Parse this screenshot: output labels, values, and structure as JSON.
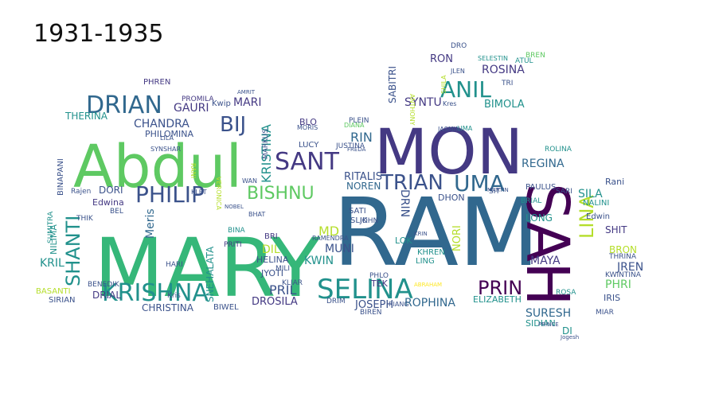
{
  "title": "1931-1935",
  "colors": {
    "background": "#ffffff",
    "palette": [
      "#440154",
      "#3b528b",
      "#21918c",
      "#5ec962",
      "#fde725",
      "#31688e",
      "#35b779",
      "#443983"
    ]
  },
  "words": [
    {
      "text": "RAM",
      "color": "#31688e"
    },
    {
      "text": "MARY",
      "color": "#35b779"
    },
    {
      "text": "Abdul",
      "color": "#5ec962"
    },
    {
      "text": "MON",
      "color": "#443983"
    },
    {
      "text": "SAH",
      "color": "#440154"
    },
    {
      "text": "KRISHNA",
      "color": "#21918c"
    },
    {
      "text": "SELINA",
      "color": "#21918c"
    },
    {
      "text": "DRIAN",
      "color": "#31688e"
    },
    {
      "text": "PHILIP",
      "color": "#3b528b"
    },
    {
      "text": "SANT",
      "color": "#443983"
    },
    {
      "text": "TRIAN",
      "color": "#3b528b"
    },
    {
      "text": "UMA",
      "color": "#31688e"
    },
    {
      "text": "ANIL",
      "color": "#21918c"
    },
    {
      "text": "BISHNU",
      "color": "#5ec962"
    },
    {
      "text": "PRIN",
      "color": "#440154"
    },
    {
      "text": "LINA",
      "color": "#b5de2b"
    },
    {
      "text": "SHANTI",
      "color": "#21918c"
    },
    {
      "text": "BIJ",
      "color": "#3b528b"
    },
    {
      "text": "CHANDRA",
      "color": "#3b528b"
    },
    {
      "text": "REGINA",
      "color": "#31688e"
    },
    {
      "text": "ROSINA",
      "color": "#443983"
    },
    {
      "text": "SYNTU",
      "color": "#443983"
    },
    {
      "text": "SABITRI",
      "color": "#3b528b"
    },
    {
      "text": "SURESH",
      "color": "#31688e"
    },
    {
      "text": "ROPHINA",
      "color": "#31688e"
    },
    {
      "text": "JOSEPH",
      "color": "#3b528b"
    },
    {
      "text": "CHRISTINA",
      "color": "#3b528b"
    },
    {
      "text": "SNEHALATA",
      "color": "#21918c"
    },
    {
      "text": "Meris",
      "color": "#31688e"
    },
    {
      "text": "GAURI",
      "color": "#443983"
    },
    {
      "text": "MARI",
      "color": "#443983"
    },
    {
      "text": "RIN",
      "color": "#31688e"
    },
    {
      "text": "NOREN",
      "color": "#31688e"
    },
    {
      "text": "RITALIS",
      "color": "#3b528b"
    },
    {
      "text": "DRIN",
      "color": "#3b528b"
    },
    {
      "text": "MUNI",
      "color": "#3b528b"
    },
    {
      "text": "KWIN",
      "color": "#21918c"
    },
    {
      "text": "HELINA",
      "color": "#3b528b"
    },
    {
      "text": "DROSILA",
      "color": "#443983"
    },
    {
      "text": "PRIL",
      "color": "#3b528b"
    },
    {
      "text": "MD",
      "color": "#b5de2b"
    },
    {
      "text": "KRISTINA",
      "color": "#21918c"
    },
    {
      "text": "PHILOMINA",
      "color": "#3b528b"
    },
    {
      "text": "THERINA",
      "color": "#21918c"
    },
    {
      "text": "NILIMA",
      "color": "#21918c"
    },
    {
      "text": "KRIL",
      "color": "#21918c"
    },
    {
      "text": "DORI",
      "color": "#3b528b"
    },
    {
      "text": "Edwina",
      "color": "#443983"
    },
    {
      "text": "MAYA",
      "color": "#443983"
    },
    {
      "text": "LONG",
      "color": "#21918c"
    },
    {
      "text": "SILA",
      "color": "#21918c"
    },
    {
      "text": "JREN",
      "color": "#3b528b"
    },
    {
      "text": "PHRI",
      "color": "#5ec962"
    },
    {
      "text": "SHIT",
      "color": "#443983"
    },
    {
      "text": "BRON",
      "color": "#b5de2b"
    },
    {
      "text": "NORI",
      "color": "#b5de2b"
    },
    {
      "text": "ELIZABETH",
      "color": "#21918c"
    },
    {
      "text": "BIMOLA",
      "color": "#21918c"
    },
    {
      "text": "RON",
      "color": "#443983"
    },
    {
      "text": "DIL",
      "color": "#b5de2b"
    },
    {
      "text": "BENEDIK",
      "color": "#3b528b"
    },
    {
      "text": "DRIAL",
      "color": "#443983"
    },
    {
      "text": "JYOTI",
      "color": "#3b528b"
    },
    {
      "text": "BIWEL",
      "color": "#3b528b"
    },
    {
      "text": "SIRIAN",
      "color": "#3b528b"
    },
    {
      "text": "BASANTI",
      "color": "#b5de2b"
    },
    {
      "text": "SUMITRA",
      "color": "#21918c"
    },
    {
      "text": "BINAPANI",
      "color": "#3b528b"
    },
    {
      "text": "PHREN",
      "color": "#443983"
    },
    {
      "text": "PROMILA",
      "color": "#443983"
    },
    {
      "text": "ROLINA",
      "color": "#21918c"
    },
    {
      "text": "PAULUS",
      "color": "#3b528b"
    },
    {
      "text": "NALINI",
      "color": "#21918c"
    },
    {
      "text": "KWINTINA",
      "color": "#3b528b"
    },
    {
      "text": "THRINA",
      "color": "#3b528b"
    },
    {
      "text": "SIDIAN",
      "color": "#21918c"
    },
    {
      "text": "BIREN",
      "color": "#3b528b"
    },
    {
      "text": "TEK",
      "color": "#443983"
    },
    {
      "text": "LING",
      "color": "#21918c"
    },
    {
      "text": "KHREN",
      "color": "#21918c"
    },
    {
      "text": "LOK",
      "color": "#21918c"
    },
    {
      "text": "DHON",
      "color": "#3b528b"
    },
    {
      "text": "SATI",
      "color": "#3b528b"
    },
    {
      "text": "SLIK",
      "color": "#3b528b"
    },
    {
      "text": "JOHN",
      "color": "#3b528b"
    },
    {
      "text": "JUSTINA",
      "color": "#3b528b"
    },
    {
      "text": "PLEIN",
      "color": "#3b528b"
    },
    {
      "text": "LUCY",
      "color": "#3b528b"
    },
    {
      "text": "BLO",
      "color": "#443983"
    },
    {
      "text": "BRI",
      "color": "#443983"
    },
    {
      "text": "BINA",
      "color": "#21918c"
    },
    {
      "text": "PRITI",
      "color": "#443983"
    },
    {
      "text": "HARI",
      "color": "#3b528b"
    },
    {
      "text": "MARKUS",
      "color": "#3b528b"
    },
    {
      "text": "THIK",
      "color": "#3b528b"
    },
    {
      "text": "BRIAL",
      "color": "#21918c"
    },
    {
      "text": "Rani",
      "color": "#3b528b"
    },
    {
      "text": "IRIS",
      "color": "#3b528b"
    },
    {
      "text": "DI",
      "color": "#21918c"
    },
    {
      "text": "Kwip",
      "color": "#3b528b"
    },
    {
      "text": "MIAR",
      "color": "#3b528b"
    },
    {
      "text": "ROSA",
      "color": "#21918c"
    },
    {
      "text": "SIT",
      "color": "#3b528b"
    },
    {
      "text": "RAMENDRA",
      "color": "#3b528b"
    },
    {
      "text": "KLIAR",
      "color": "#3b528b"
    },
    {
      "text": "DRIM",
      "color": "#3b528b"
    },
    {
      "text": "PHLO",
      "color": "#3b528b"
    },
    {
      "text": "SARI",
      "color": "#3b528b"
    },
    {
      "text": "Rajen",
      "color": "#3b528b"
    },
    {
      "text": "Kris",
      "color": "#3b528b"
    },
    {
      "text": "BEL",
      "color": "#3b528b"
    },
    {
      "text": "BREN",
      "color": "#5ec962"
    },
    {
      "text": "ATUL",
      "color": "#21918c"
    },
    {
      "text": "SELESTIN",
      "color": "#21918c"
    },
    {
      "text": "JLEN",
      "color": "#3b528b"
    },
    {
      "text": "DRO",
      "color": "#3b528b"
    },
    {
      "text": "TRI",
      "color": "#3b528b"
    },
    {
      "text": "Kres",
      "color": "#3b528b"
    },
    {
      "text": "DIANA",
      "color": "#5ec962"
    },
    {
      "text": "RIANG",
      "color": "#3b528b"
    },
    {
      "text": "ABRAHAM",
      "color": "#fde725"
    },
    {
      "text": "SHILA",
      "color": "#b5de2b"
    },
    {
      "text": "KRIN",
      "color": "#3b528b"
    },
    {
      "text": "ANTHONY",
      "color": "#b5de2b"
    },
    {
      "text": "SYNSHAR",
      "color": "#3b528b"
    },
    {
      "text": "LILA",
      "color": "#3b528b"
    },
    {
      "text": "AMRIT",
      "color": "#3b528b"
    },
    {
      "text": "VERONICA",
      "color": "#b5de2b"
    },
    {
      "text": "MORIS",
      "color": "#3b528b"
    },
    {
      "text": "RANI",
      "color": "#b5de2b"
    },
    {
      "text": "LIMA",
      "color": "#21918c"
    },
    {
      "text": "PRINCE",
      "color": "#3b528b"
    },
    {
      "text": "Jogesh",
      "color": "#3b528b"
    },
    {
      "text": "MILI",
      "color": "#3b528b"
    },
    {
      "text": "KLET",
      "color": "#3b528b"
    },
    {
      "text": "WAN",
      "color": "#3b528b"
    },
    {
      "text": "Edwin",
      "color": "#3b528b"
    },
    {
      "text": "JASMIN",
      "color": "#3b528b"
    },
    {
      "text": "MARTIN",
      "color": "#3b528b"
    },
    {
      "text": "BHAT",
      "color": "#3b528b"
    },
    {
      "text": "NOBEL",
      "color": "#3b528b"
    },
    {
      "text": "FREDA",
      "color": "#3b528b"
    }
  ]
}
